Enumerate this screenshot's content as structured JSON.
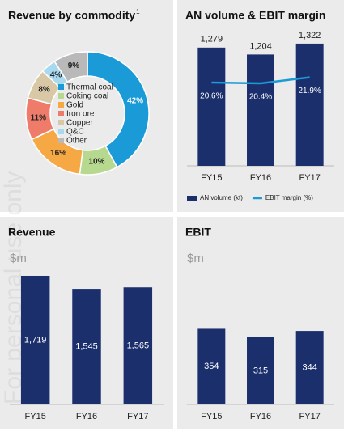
{
  "watermark": "For personal use only",
  "chart_data": [
    {
      "type": "pie",
      "donut": true,
      "title": "Revenue by commodity",
      "title_note": "1",
      "categories": [
        "Thermal coal",
        "Coking coal",
        "Gold",
        "Iron ore",
        "Copper",
        "Q&C",
        "Other"
      ],
      "values": [
        42,
        10,
        16,
        11,
        8,
        4,
        9
      ],
      "value_labels": [
        "42%",
        "10%",
        "16%",
        "11%",
        "8%",
        "4%",
        "9%"
      ],
      "colors": [
        "#1a9bd7",
        "#b7d98f",
        "#f6a844",
        "#ef7b6b",
        "#d8c8a6",
        "#a9d9ef",
        "#b9b9b9"
      ]
    },
    {
      "type": "bar",
      "title": "AN volume & EBIT margin",
      "categories": [
        "FY15",
        "FY16",
        "FY17"
      ],
      "ylim": [
        0,
        1400
      ],
      "y2lim": [
        0,
        32
      ],
      "series": [
        {
          "name": "AN volume (kt)",
          "color": "#1b2f6c",
          "values": [
            1279,
            1204,
            1322
          ],
          "value_labels": [
            "1,279",
            "1,204",
            "1,322"
          ]
        },
        {
          "name": "EBIT margin (%)",
          "color": "#1a9bd7",
          "type": "line",
          "axis": "y2",
          "values": [
            20.6,
            20.4,
            21.9
          ],
          "value_labels": [
            "20.6%",
            "20.4%",
            "21.9%"
          ]
        }
      ]
    },
    {
      "type": "bar",
      "title": "Revenue",
      "subtitle": "$m",
      "categories": [
        "FY15",
        "FY16",
        "FY17"
      ],
      "ylim": [
        0,
        2000
      ],
      "series": [
        {
          "color": "#1b2f6c",
          "values": [
            1719,
            1545,
            1565
          ],
          "value_labels": [
            "1,719",
            "1,545",
            "1,565"
          ]
        }
      ]
    },
    {
      "type": "bar",
      "title": "EBIT",
      "subtitle": "$m",
      "categories": [
        "FY15",
        "FY16",
        "FY17"
      ],
      "ylim": [
        0,
        700
      ],
      "series": [
        {
          "color": "#1b2f6c",
          "values": [
            354,
            315,
            344
          ]
        }
      ]
    }
  ]
}
